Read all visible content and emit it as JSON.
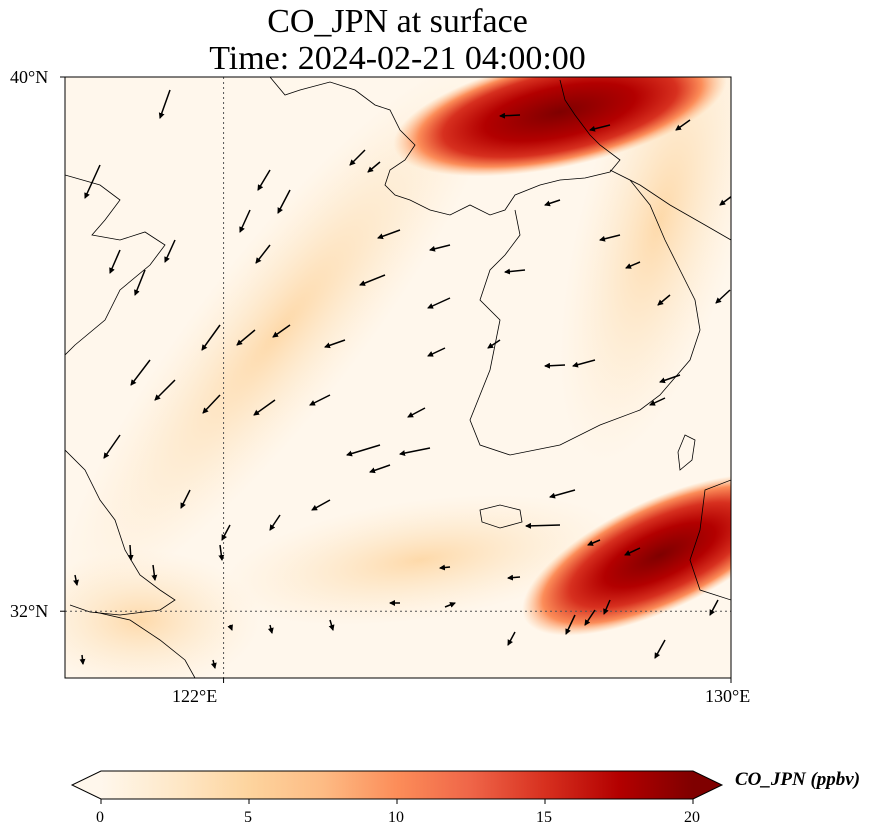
{
  "title": {
    "line1": "CO_JPN at surface",
    "line2": "Time: 2024-02-21 04:00:00"
  },
  "map": {
    "lon_range": [
      119.5,
      130.0
    ],
    "lat_range": [
      31.0,
      40.0
    ],
    "lat_ticks": [
      {
        "value": 40,
        "label": "40°N"
      },
      {
        "value": 32,
        "label": "32°N"
      }
    ],
    "lon_ticks": [
      {
        "value": 122,
        "label": "122°E"
      },
      {
        "value": 130,
        "label": "130°E"
      }
    ],
    "gridlines": {
      "lons": [
        122
      ],
      "lats": [
        32
      ],
      "style": "dotted"
    },
    "field": "CO_JPN",
    "level": "surface",
    "wind_vectors": true,
    "plume_cores": [
      {
        "name": "northern-plume",
        "lon": 128.2,
        "lat": 39.7
      },
      {
        "name": "southeastern-plume",
        "lon": 129.3,
        "lat": 32.7
      }
    ]
  },
  "colorbar": {
    "label": "CO_JPN (ppbv)",
    "min": 0,
    "max": 20,
    "ticks": [
      "0",
      "5",
      "10",
      "15",
      "20"
    ],
    "colormap": "OrRd",
    "colors": [
      "#fff7ec",
      "#fee8c8",
      "#fdd49e",
      "#fdbb84",
      "#fc8d59",
      "#ef6548",
      "#d7301f",
      "#b30000",
      "#7f0000"
    ],
    "extend": "both"
  }
}
